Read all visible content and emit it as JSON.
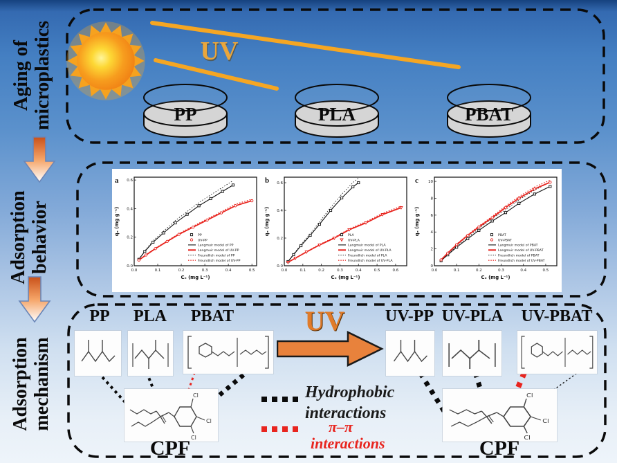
{
  "colors": {
    "accent_orange": "#e8823c",
    "uv_ray_orange": "#f5a623",
    "series_black": "#111111",
    "series_red": "#e8251f",
    "dish_gray": "#d5d5d5"
  },
  "sidebar": {
    "sections": [
      {
        "line1": "Aging of",
        "line2": "microplastics"
      },
      {
        "line1": "Adsorption",
        "line2": "behavior"
      },
      {
        "line1": "Adsorption",
        "line2": "mechanism"
      }
    ]
  },
  "aging_panel": {
    "uv_label": "UV",
    "dishes": [
      "PP",
      "PLA",
      "PBAT"
    ]
  },
  "mechanism_panel": {
    "uv_label": "UV",
    "pristine": [
      "PP",
      "PLA",
      "PBAT"
    ],
    "aged": [
      "UV-PP",
      "UV-PLA",
      "UV-PBAT"
    ],
    "cpf_left": "CPF",
    "cpf_right": "CPF",
    "cl": "Cl",
    "legend": {
      "hydrophobic_line1": "Hydrophobic",
      "hydrophobic_line2": "interactions",
      "pipi_line1": "π–π",
      "pipi_line2": "interactions"
    }
  },
  "chart_data": [
    {
      "type": "scatter",
      "panel_label": "a",
      "xlabel": "Cₑ (mg L⁻¹)",
      "ylabel": "qₑ (mg g⁻¹)",
      "xlim": [
        0,
        0.52
      ],
      "ylim": [
        0,
        0.62
      ],
      "x_ticks": [
        "0.0",
        "0.1",
        "0.2",
        "0.3",
        "0.4",
        "0.5"
      ],
      "y_ticks": [
        "0.0",
        "0.2",
        "0.4",
        "0.6"
      ],
      "grid": false,
      "legend_position": "lower right",
      "series": [
        {
          "name": "PP",
          "color": "#111111",
          "marker": "square",
          "x": [
            0.02,
            0.045,
            0.08,
            0.125,
            0.175,
            0.225,
            0.275,
            0.325,
            0.375,
            0.42
          ],
          "y": [
            0.045,
            0.1,
            0.165,
            0.23,
            0.3,
            0.36,
            0.42,
            0.47,
            0.52,
            0.565
          ]
        },
        {
          "name": "UV-PP",
          "color": "#e8251f",
          "marker": "circle",
          "x": [
            0.02,
            0.05,
            0.09,
            0.14,
            0.19,
            0.25,
            0.31,
            0.37,
            0.43,
            0.5
          ],
          "y": [
            0.04,
            0.075,
            0.12,
            0.17,
            0.22,
            0.27,
            0.32,
            0.37,
            0.42,
            0.455
          ]
        }
      ],
      "legend": [
        "PP",
        "UV-PP",
        "Langmuir model of PP",
        "Langmuir model of UV-PP",
        "Freundlich model of PP",
        "Freundlich model of UV-PP"
      ]
    },
    {
      "type": "scatter",
      "panel_label": "b",
      "xlabel": "Cₑ (mg L⁻¹)",
      "ylabel": "qₑ (mg g⁻¹)",
      "xlim": [
        0,
        0.66
      ],
      "ylim": [
        0,
        0.64
      ],
      "x_ticks": [
        "0.0",
        "0.1",
        "0.2",
        "0.3",
        "0.4",
        "0.5",
        "0.6"
      ],
      "y_ticks": [
        "0.0",
        "0.2",
        "0.4",
        "0.6"
      ],
      "grid": false,
      "legend_position": "lower right",
      "series": [
        {
          "name": "PLA",
          "color": "#111111",
          "marker": "square",
          "x": [
            0.02,
            0.05,
            0.09,
            0.14,
            0.19,
            0.25,
            0.31,
            0.37,
            0.4
          ],
          "y": [
            0.03,
            0.08,
            0.145,
            0.22,
            0.3,
            0.4,
            0.49,
            0.57,
            0.6
          ]
        },
        {
          "name": "UV-PLA",
          "color": "#e8251f",
          "marker": "triangle",
          "x": [
            0.02,
            0.06,
            0.12,
            0.19,
            0.27,
            0.35,
            0.44,
            0.53,
            0.63
          ],
          "y": [
            0.025,
            0.055,
            0.1,
            0.15,
            0.2,
            0.26,
            0.31,
            0.37,
            0.42
          ]
        }
      ],
      "legend": [
        "PLA",
        "UV-PLA",
        "Langmuir model of PLA",
        "Langmuir model of UV-PLA",
        "Freundlich model of PLA",
        "Freundlich model of UV-PLA"
      ]
    },
    {
      "type": "scatter",
      "panel_label": "c",
      "xlabel": "Cₑ (mg L⁻¹)",
      "ylabel": "qₑ (mg g⁻¹)",
      "xlim": [
        0,
        0.55
      ],
      "ylim": [
        0,
        10.5
      ],
      "x_ticks": [
        "0.0",
        "0.1",
        "0.2",
        "0.3",
        "0.4",
        "0.5"
      ],
      "y_ticks": [
        "0",
        "2",
        "4",
        "6",
        "8",
        "10"
      ],
      "grid": false,
      "legend_position": "lower right",
      "series": [
        {
          "name": "PBAT",
          "color": "#111111",
          "marker": "square",
          "x": [
            0.03,
            0.06,
            0.1,
            0.15,
            0.2,
            0.26,
            0.32,
            0.38,
            0.45,
            0.52
          ],
          "y": [
            0.6,
            1.3,
            2.2,
            3.2,
            4.2,
            5.3,
            6.3,
            7.4,
            8.5,
            9.4
          ]
        },
        {
          "name": "UV-PBAT",
          "color": "#e8251f",
          "marker": "circle",
          "x": [
            0.03,
            0.06,
            0.1,
            0.15,
            0.2,
            0.26,
            0.32,
            0.38,
            0.45,
            0.52
          ],
          "y": [
            0.7,
            1.5,
            2.5,
            3.6,
            4.6,
            5.7,
            6.9,
            8.0,
            9.1,
            9.9
          ]
        }
      ],
      "legend": [
        "PBAT",
        "UV-PBAT",
        "Langmuir model of PBAT",
        "Langmuir model of UV-PBAT",
        "Freundlich model of PBAT",
        "Freundlich model of UV-PBAT"
      ]
    }
  ]
}
